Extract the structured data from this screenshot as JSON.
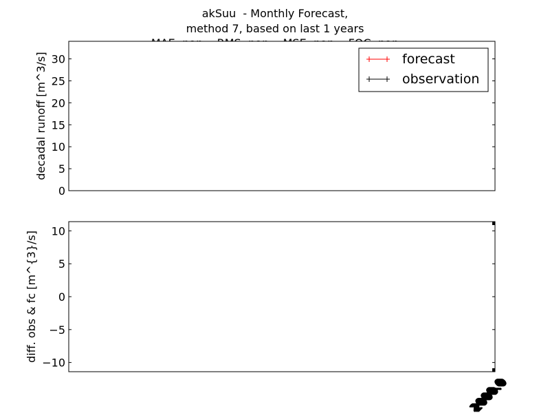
{
  "figure": {
    "title_lines": [
      "akSuu  - Monthly Forecast,",
      "method 7, based on last 1 years",
      "MAE: nan,   RMS: nan,   MSE: nan,   FQC: nan"
    ]
  },
  "chart_data": [
    {
      "type": "line",
      "ylabel": "decadal runoff [m^3/s]",
      "ylim": [
        0,
        34
      ],
      "yticks": [
        0,
        5,
        10,
        15,
        20,
        25,
        30
      ],
      "grid": false,
      "legend_placement": "top-right",
      "series": [
        {
          "name": "forecast",
          "color": "#ff0000",
          "x": [],
          "values": []
        },
        {
          "name": "observation",
          "color": "#000000",
          "x": [],
          "values": []
        }
      ]
    },
    {
      "type": "line",
      "ylabel": "diff. obs & fc [m^{3}/s]",
      "ylim": [
        -11.4,
        11.4
      ],
      "yticks": [
        10,
        5,
        0,
        -5,
        -10
      ],
      "ytick_labels": [
        "10",
        "5",
        "0",
        "−5",
        "−10"
      ],
      "grid": false,
      "xtick_labels": [
        "2000.0",
        "2000.0",
        "2000.0",
        "2000.0"
      ],
      "series": []
    }
  ]
}
